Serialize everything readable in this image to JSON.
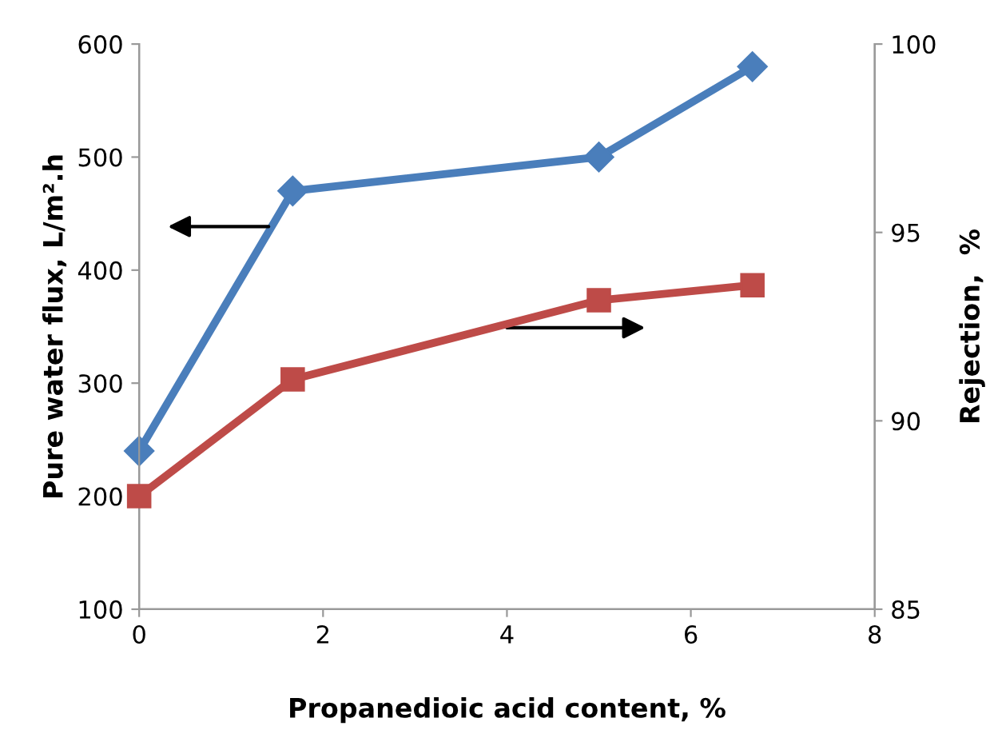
{
  "chart_data": {
    "type": "line",
    "xlabel": "Propanedioic acid content, %",
    "ylabel": "Pure water flux, L/m².h",
    "y2label": "Rejection,  %",
    "x": [
      0,
      1.67,
      5,
      6.67
    ],
    "series": [
      {
        "color": "#4a7ebb",
        "values": [
          240,
          470,
          500,
          580
        ],
        "marker": "diamond"
      },
      {
        "color": "#be4b48",
        "values": [
          88.0,
          91.1,
          93.2,
          93.6
        ],
        "marker": "square",
        "axis": "y2"
      }
    ],
    "xlim": [
      0,
      8
    ],
    "xticks": [
      0,
      2,
      4,
      6,
      8
    ],
    "ylim": [
      100,
      600
    ],
    "yticks": [
      100,
      200,
      300,
      400,
      500,
      600
    ],
    "y2lim": [
      85,
      100
    ],
    "y2ticks": [
      85,
      90,
      95,
      100
    ],
    "grid": false,
    "legend": false,
    "line_style": "solid"
  }
}
